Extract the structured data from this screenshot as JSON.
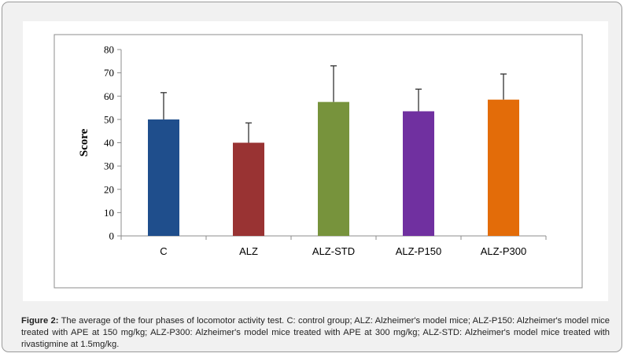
{
  "chart_data": {
    "type": "bar",
    "title": "",
    "xlabel": "",
    "ylabel": "Score",
    "ylim": [
      0,
      80
    ],
    "yticks": [
      0,
      10,
      20,
      30,
      40,
      50,
      60,
      70,
      80
    ],
    "grid": false,
    "legend": "none",
    "categories": [
      "C",
      "ALZ",
      "ALZ-STD",
      "ALZ-P150",
      "ALZ-P300"
    ],
    "values": [
      50,
      40,
      57.5,
      53.5,
      58.5
    ],
    "error_upper": [
      61.5,
      48.5,
      73,
      63,
      69.5
    ],
    "colors": [
      "#1f4e8c",
      "#993333",
      "#77933c",
      "#7030a0",
      "#e36c09"
    ]
  },
  "caption": {
    "label": "Figure 2:",
    "text": "The average of the four phases of locomotor activity test. C: control group; ALZ: Alzheimer's model mice; ALZ-P150: Alzheimer's model mice treated with APE at 150 mg/kg; ALZ-P300: Alzheimer's model mice treated with APE at 300 mg/kg; ALZ-STD: Alzheimer's model mice treated with rivastigmine at 1.5mg/kg."
  }
}
